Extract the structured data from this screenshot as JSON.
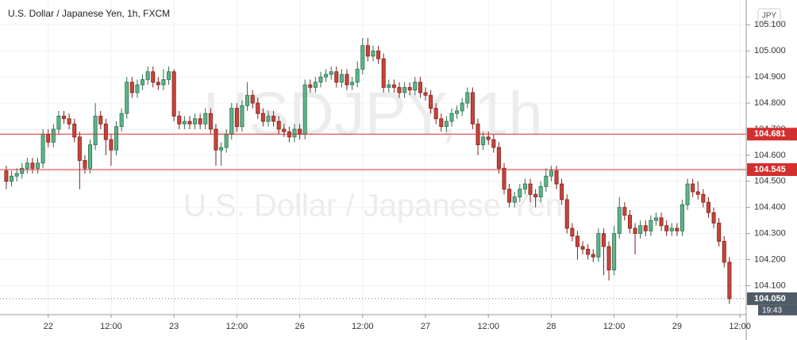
{
  "chart_data": {
    "type": "candlestick",
    "title": "U.S. Dollar / Japanese Yen, 1h, FXCM",
    "watermark": "USDJPY, 1h",
    "watermark_subtitle": "U.S. Dollar / Japanese Yen",
    "currency_button": "JPY",
    "countdown": "19:43",
    "up_color": "#5cb58b",
    "up_border": "#2f6e4d",
    "down_color": "#c9443c",
    "down_border": "#7d211b",
    "grid": true,
    "ylim": [
      103.995,
      105.18
    ],
    "yticks": [
      {
        "value": 104.1,
        "label": "104.100"
      },
      {
        "value": 104.2,
        "label": "104.200"
      },
      {
        "value": 104.3,
        "label": "104.300"
      },
      {
        "value": 104.4,
        "label": "104.400"
      },
      {
        "value": 104.5,
        "label": "104.500"
      },
      {
        "value": 104.6,
        "label": "104.600"
      },
      {
        "value": 104.7,
        "label": "104.700"
      },
      {
        "value": 104.8,
        "label": "104.800"
      },
      {
        "value": 104.9,
        "label": "104.900"
      },
      {
        "value": 105.0,
        "label": "105.000"
      },
      {
        "value": 105.1,
        "label": "105.100"
      }
    ],
    "xlim": [
      -1.2,
      141.2
    ],
    "xticks": [
      {
        "value": 8,
        "label": "22"
      },
      {
        "value": 20,
        "label": "12:00"
      },
      {
        "value": 32,
        "label": "23"
      },
      {
        "value": 44,
        "label": "12:00"
      },
      {
        "value": 56,
        "label": "26"
      },
      {
        "value": 68,
        "label": "12:00"
      },
      {
        "value": 80,
        "label": "27"
      },
      {
        "value": 92,
        "label": "12:00"
      },
      {
        "value": 104,
        "label": "28"
      },
      {
        "value": 116,
        "label": "12:00"
      },
      {
        "value": 128,
        "label": "29"
      },
      {
        "value": 140,
        "label": "12:00"
      }
    ],
    "hlines": [
      {
        "value": 104.681,
        "label": "104.681",
        "color": "#d32f2f"
      },
      {
        "value": 104.545,
        "label": "104.545",
        "color": "#d32f2f"
      }
    ],
    "last_price": {
      "value": 104.05,
      "label": "104.050",
      "color": "#4f5b66"
    },
    "open": [
      104.54,
      104.5,
      104.52,
      104.53,
      104.55,
      104.57,
      104.55,
      104.57,
      104.68,
      104.65,
      104.7,
      104.75,
      104.74,
      104.72,
      104.67,
      104.58,
      104.55,
      104.64,
      104.75,
      104.72,
      104.66,
      104.62,
      104.71,
      104.76,
      104.88,
      104.84,
      104.87,
      104.89,
      104.92,
      104.88,
      104.87,
      104.89,
      104.92,
      104.75,
      104.72,
      104.73,
      104.72,
      104.74,
      104.72,
      104.76,
      104.7,
      104.62,
      104.63,
      104.68,
      104.78,
      104.71,
      104.79,
      104.83,
      104.8,
      104.76,
      104.73,
      104.75,
      104.73,
      104.7,
      104.69,
      104.67,
      104.7,
      104.68,
      104.87,
      104.86,
      104.88,
      104.9,
      104.91,
      104.92,
      104.88,
      104.91,
      104.87,
      104.88,
      104.93,
      105.02,
      104.98,
      105.0,
      104.97,
      104.86,
      104.87,
      104.86,
      104.84,
      104.86,
      104.85,
      104.88,
      104.84,
      104.83,
      104.78,
      104.74,
      104.71,
      104.73,
      104.76,
      104.77,
      104.8,
      104.84,
      104.72,
      104.64,
      104.67,
      104.66,
      104.63,
      104.55,
      104.47,
      104.42,
      104.44,
      104.47,
      104.49,
      104.45,
      104.44,
      104.48,
      104.52,
      104.54,
      104.49,
      104.43,
      104.32,
      104.29,
      104.25,
      104.24,
      104.22,
      104.21,
      104.3,
      104.25,
      104.16,
      104.3,
      104.4,
      104.37,
      104.32,
      104.3,
      104.33,
      104.31,
      104.35,
      104.36,
      104.33,
      104.31,
      104.32,
      104.31,
      104.41,
      104.49,
      104.46,
      104.45,
      104.42,
      104.38,
      104.34,
      104.27,
      104.19
    ],
    "high": [
      104.56,
      104.54,
      104.55,
      104.57,
      104.59,
      104.59,
      104.59,
      104.7,
      104.7,
      104.72,
      104.77,
      104.77,
      104.76,
      104.74,
      104.69,
      104.6,
      104.66,
      104.8,
      104.77,
      104.74,
      104.68,
      104.73,
      104.78,
      104.9,
      104.9,
      104.89,
      104.91,
      104.94,
      104.94,
      104.9,
      104.93,
      104.94,
      104.93,
      104.77,
      104.75,
      104.75,
      104.76,
      104.76,
      104.78,
      104.78,
      104.72,
      104.65,
      104.7,
      104.8,
      104.8,
      104.81,
      104.88,
      104.85,
      104.82,
      104.78,
      104.77,
      104.77,
      104.75,
      104.72,
      104.71,
      104.72,
      104.72,
      104.89,
      104.89,
      104.9,
      104.92,
      104.93,
      104.94,
      104.94,
      104.93,
      104.93,
      104.9,
      104.96,
      105.05,
      105.05,
      105.02,
      105.02,
      104.99,
      104.89,
      104.89,
      104.88,
      104.88,
      104.88,
      104.9,
      104.9,
      104.86,
      104.85,
      104.8,
      104.76,
      104.75,
      104.78,
      104.79,
      104.82,
      104.86,
      104.86,
      104.74,
      104.69,
      104.69,
      104.68,
      104.65,
      104.57,
      104.49,
      104.46,
      104.49,
      104.51,
      104.51,
      104.47,
      104.5,
      104.55,
      104.56,
      104.56,
      104.51,
      104.45,
      104.34,
      104.31,
      104.27,
      104.26,
      104.24,
      104.32,
      104.32,
      104.27,
      104.33,
      104.44,
      104.42,
      104.39,
      104.34,
      104.35,
      104.35,
      104.37,
      104.38,
      104.38,
      104.35,
      104.34,
      104.34,
      104.43,
      104.51,
      104.51,
      104.5,
      104.47,
      104.44,
      104.4,
      104.36,
      104.29,
      104.21
    ],
    "low": [
      104.47,
      104.48,
      104.5,
      104.51,
      104.53,
      104.53,
      104.53,
      104.55,
      104.63,
      104.63,
      104.68,
      104.72,
      104.7,
      104.65,
      104.47,
      104.53,
      104.53,
      104.62,
      104.7,
      104.6,
      104.56,
      104.6,
      104.69,
      104.74,
      104.82,
      104.82,
      104.85,
      104.87,
      104.86,
      104.85,
      104.85,
      104.87,
      104.73,
      104.7,
      104.7,
      104.7,
      104.7,
      104.7,
      104.7,
      104.68,
      104.56,
      104.56,
      104.61,
      104.66,
      104.69,
      104.69,
      104.77,
      104.78,
      104.74,
      104.71,
      104.71,
      104.71,
      104.68,
      104.67,
      104.65,
      104.65,
      104.66,
      104.66,
      104.84,
      104.84,
      104.86,
      104.88,
      104.89,
      104.86,
      104.86,
      104.85,
      104.85,
      104.86,
      104.91,
      104.96,
      104.96,
      104.95,
      104.84,
      104.84,
      104.84,
      104.82,
      104.82,
      104.83,
      104.83,
      104.82,
      104.81,
      104.76,
      104.72,
      104.69,
      104.69,
      104.71,
      104.74,
      104.75,
      104.78,
      104.7,
      104.6,
      104.62,
      104.64,
      104.61,
      104.53,
      104.45,
      104.4,
      104.4,
      104.42,
      104.45,
      104.42,
      104.4,
      104.42,
      104.46,
      104.5,
      104.47,
      104.41,
      104.3,
      104.27,
      104.2,
      104.22,
      104.2,
      104.19,
      104.19,
      104.14,
      104.12,
      104.14,
      104.28,
      104.35,
      104.3,
      104.22,
      104.28,
      104.29,
      104.29,
      104.33,
      104.31,
      104.29,
      104.29,
      104.29,
      104.29,
      104.39,
      104.44,
      104.43,
      104.4,
      104.36,
      104.32,
      104.25,
      104.17,
      104.03
    ],
    "close": [
      104.5,
      104.52,
      104.53,
      104.55,
      104.57,
      104.55,
      104.57,
      104.68,
      104.65,
      104.7,
      104.75,
      104.74,
      104.72,
      104.67,
      104.58,
      104.55,
      104.64,
      104.75,
      104.72,
      104.66,
      104.62,
      104.71,
      104.76,
      104.88,
      104.84,
      104.87,
      104.89,
      104.92,
      104.88,
      104.87,
      104.89,
      104.92,
      104.75,
      104.72,
      104.73,
      104.72,
      104.74,
      104.72,
      104.76,
      104.7,
      104.62,
      104.63,
      104.68,
      104.78,
      104.71,
      104.79,
      104.83,
      104.8,
      104.76,
      104.73,
      104.75,
      104.73,
      104.7,
      104.69,
      104.67,
      104.7,
      104.68,
      104.87,
      104.86,
      104.88,
      104.9,
      104.91,
      104.92,
      104.88,
      104.91,
      104.87,
      104.88,
      104.93,
      105.02,
      104.98,
      105.0,
      104.97,
      104.86,
      104.87,
      104.86,
      104.84,
      104.86,
      104.85,
      104.88,
      104.84,
      104.83,
      104.78,
      104.74,
      104.71,
      104.73,
      104.76,
      104.77,
      104.8,
      104.84,
      104.72,
      104.64,
      104.67,
      104.66,
      104.63,
      104.55,
      104.47,
      104.42,
      104.44,
      104.47,
      104.49,
      104.45,
      104.44,
      104.48,
      104.52,
      104.54,
      104.49,
      104.43,
      104.32,
      104.29,
      104.25,
      104.24,
      104.22,
      104.21,
      104.3,
      104.25,
      104.16,
      104.3,
      104.4,
      104.37,
      104.32,
      104.3,
      104.33,
      104.31,
      104.35,
      104.36,
      104.33,
      104.31,
      104.32,
      104.31,
      104.41,
      104.49,
      104.46,
      104.45,
      104.42,
      104.38,
      104.34,
      104.27,
      104.19,
      104.05
    ]
  }
}
